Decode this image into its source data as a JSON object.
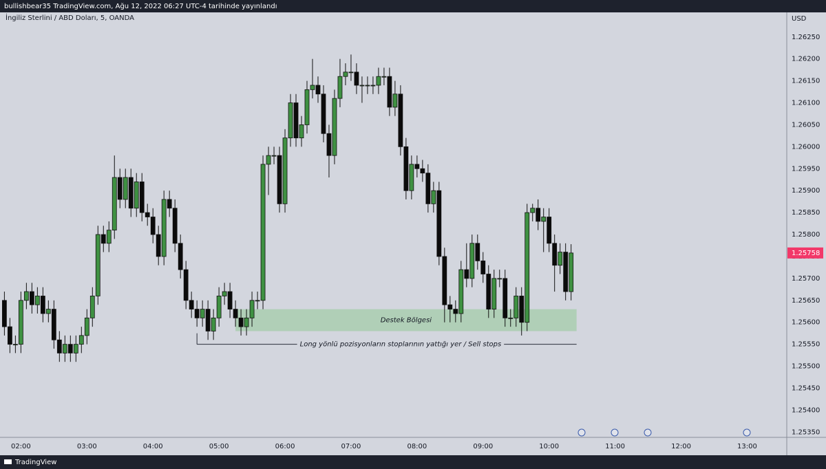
{
  "header": {
    "title": "bullishbear35 TradingView.com, Ağu 12, 2022 06:27 UTC-4 tarihinde yayınlandı",
    "footer": "TradingView"
  },
  "chart_data": {
    "type": "candlestick",
    "symbol": "İngiliz Sterlini / ABD Doları, 5, OANDA",
    "currency": "USD",
    "up_color": "#3f9142",
    "down_color": "#0b0b0b",
    "grid": false,
    "x": [
      "01:45",
      "01:50",
      "01:55",
      "02:00",
      "02:05",
      "02:10",
      "02:15",
      "02:20",
      "02:25",
      "02:30",
      "02:35",
      "02:40",
      "02:45",
      "02:50",
      "02:55",
      "03:00",
      "03:05",
      "03:10",
      "03:15",
      "03:20",
      "03:25",
      "03:30",
      "03:35",
      "03:40",
      "03:45",
      "03:50",
      "03:55",
      "04:00",
      "04:05",
      "04:10",
      "04:15",
      "04:20",
      "04:25",
      "04:30",
      "04:35",
      "04:40",
      "04:45",
      "04:50",
      "04:55",
      "05:00",
      "05:05",
      "05:10",
      "05:15",
      "05:20",
      "05:25",
      "05:30",
      "05:35",
      "05:40",
      "05:45",
      "05:50",
      "05:55",
      "06:00",
      "06:05",
      "06:10",
      "06:15",
      "06:20",
      "06:25",
      "06:30",
      "06:35",
      "06:40",
      "06:45",
      "06:50",
      "06:55",
      "07:00",
      "07:05",
      "07:10",
      "07:15",
      "07:20",
      "07:25",
      "07:30",
      "07:35",
      "07:40",
      "07:45",
      "07:50",
      "07:55",
      "08:00",
      "08:05",
      "08:10",
      "08:15",
      "08:20",
      "08:25",
      "08:30",
      "08:35",
      "08:40",
      "08:45",
      "08:50",
      "08:55",
      "09:00",
      "09:05",
      "09:10",
      "09:15",
      "09:20",
      "09:25",
      "09:30",
      "09:35",
      "09:40",
      "09:45",
      "09:50",
      "09:55",
      "10:00",
      "10:05",
      "10:10",
      "10:15",
      "10:20"
    ],
    "open": [
      1.2565,
      1.2559,
      1.2555,
      1.2555,
      1.2565,
      1.2567,
      1.2564,
      1.2566,
      1.2562,
      1.2563,
      1.2556,
      1.2553,
      1.2555,
      1.2553,
      1.2555,
      1.2557,
      1.2561,
      1.2566,
      1.258,
      1.2578,
      1.2581,
      1.2593,
      1.2588,
      1.2593,
      1.2586,
      1.2592,
      1.2585,
      1.2584,
      1.258,
      1.2575,
      1.2588,
      1.2586,
      1.2578,
      1.2572,
      1.2565,
      1.2563,
      1.2561,
      1.2563,
      1.2558,
      1.2561,
      1.2566,
      1.2567,
      1.2563,
      1.2561,
      1.2559,
      1.2561,
      1.2565,
      1.2565,
      1.2596,
      1.2598,
      1.2598,
      1.2587,
      1.2602,
      1.261,
      1.2602,
      1.2605,
      1.2613,
      1.2614,
      1.2612,
      1.2603,
      1.2598,
      1.2611,
      1.2616,
      1.2617,
      1.2617,
      1.2614,
      1.2614,
      1.2614,
      1.2614,
      1.2616,
      1.2616,
      1.2609,
      1.2612,
      1.26,
      1.259,
      1.2596,
      1.2595,
      1.2594,
      1.2587,
      1.259,
      1.2575,
      1.2564,
      1.2563,
      1.2562,
      1.2572,
      1.257,
      1.2578,
      1.2574,
      1.2571,
      1.2563,
      1.257,
      1.257,
      1.2561,
      1.2561,
      1.2566,
      1.256,
      1.2585,
      1.2586,
      1.2583,
      1.2584,
      1.2578,
      1.2573,
      1.2576,
      1.2567
    ],
    "high": [
      1.2567,
      1.2561,
      1.2557,
      1.2567,
      1.2569,
      1.2569,
      1.2568,
      1.2568,
      1.2565,
      1.2565,
      1.2558,
      1.2557,
      1.2557,
      1.2557,
      1.2559,
      1.2563,
      1.2568,
      1.2582,
      1.2582,
      1.2583,
      1.2598,
      1.2595,
      1.2595,
      1.2595,
      1.2594,
      1.2594,
      1.2587,
      1.2586,
      1.2582,
      1.259,
      1.259,
      1.2588,
      1.258,
      1.2574,
      1.2567,
      1.2565,
      1.2565,
      1.2565,
      1.2563,
      1.2568,
      1.2569,
      1.2569,
      1.2565,
      1.2563,
      1.2563,
      1.2567,
      1.2567,
      1.2598,
      1.26,
      1.26,
      1.26,
      1.2604,
      1.2612,
      1.2612,
      1.2607,
      1.2615,
      1.262,
      1.2616,
      1.2614,
      1.2605,
      1.2613,
      1.262,
      1.2619,
      1.2621,
      1.2619,
      1.2616,
      1.2616,
      1.2616,
      1.2618,
      1.2618,
      1.2618,
      1.2615,
      1.2614,
      1.2602,
      1.2598,
      1.2598,
      1.2597,
      1.2596,
      1.2592,
      1.2592,
      1.2577,
      1.2566,
      1.2565,
      1.2574,
      1.2578,
      1.258,
      1.258,
      1.2576,
      1.2573,
      1.2572,
      1.2572,
      1.2572,
      1.2563,
      1.2568,
      1.2568,
      1.2587,
      1.2587,
      1.2588,
      1.2586,
      1.2586,
      1.258,
      1.2578,
      1.2578,
      1.25778
    ],
    "low": [
      1.2557,
      1.2553,
      1.2553,
      1.2553,
      1.2563,
      1.2562,
      1.2562,
      1.256,
      1.256,
      1.2554,
      1.2551,
      1.2551,
      1.2551,
      1.2551,
      1.2553,
      1.2555,
      1.2559,
      1.2564,
      1.2576,
      1.2576,
      1.2579,
      1.2586,
      1.2586,
      1.2584,
      1.2584,
      1.2583,
      1.2582,
      1.2578,
      1.2573,
      1.2573,
      1.2584,
      1.2576,
      1.257,
      1.2563,
      1.2561,
      1.2559,
      1.2559,
      1.2556,
      1.2556,
      1.2559,
      1.2564,
      1.2561,
      1.2559,
      1.2557,
      1.2557,
      1.2559,
      1.2563,
      1.2563,
      1.2589,
      1.2596,
      1.2585,
      1.2585,
      1.26,
      1.26,
      1.26,
      1.2603,
      1.2611,
      1.261,
      1.2601,
      1.2593,
      1.2596,
      1.2609,
      1.2614,
      1.2615,
      1.2612,
      1.261,
      1.2612,
      1.2612,
      1.2612,
      1.2614,
      1.2607,
      1.2607,
      1.2598,
      1.2588,
      1.2588,
      1.2593,
      1.2592,
      1.2585,
      1.2585,
      1.2573,
      1.256,
      1.256,
      1.256,
      1.256,
      1.2568,
      1.2568,
      1.2572,
      1.2569,
      1.2561,
      1.2561,
      1.2568,
      1.2559,
      1.2559,
      1.2559,
      1.2557,
      1.2558,
      1.2583,
      1.2581,
      1.2576,
      1.2576,
      1.2567,
      1.2571,
      1.2565,
      1.2565
    ],
    "close": [
      1.2559,
      1.2555,
      1.2555,
      1.2565,
      1.2567,
      1.2564,
      1.2566,
      1.2562,
      1.2563,
      1.2556,
      1.2553,
      1.2555,
      1.2553,
      1.2555,
      1.2557,
      1.2561,
      1.2566,
      1.258,
      1.2578,
      1.2581,
      1.2593,
      1.2588,
      1.2593,
      1.2586,
      1.2592,
      1.2585,
      1.2584,
      1.258,
      1.2575,
      1.2588,
      1.2586,
      1.2578,
      1.2572,
      1.2565,
      1.2563,
      1.2561,
      1.2563,
      1.2558,
      1.2561,
      1.2566,
      1.2567,
      1.2563,
      1.2561,
      1.2559,
      1.2561,
      1.2565,
      1.2565,
      1.2596,
      1.2598,
      1.2598,
      1.2587,
      1.2602,
      1.261,
      1.2602,
      1.2605,
      1.2613,
      1.2614,
      1.2612,
      1.2603,
      1.2598,
      1.2611,
      1.2616,
      1.2617,
      1.2617,
      1.2614,
      1.2614,
      1.2614,
      1.2614,
      1.2616,
      1.2616,
      1.2609,
      1.2612,
      1.26,
      1.259,
      1.2596,
      1.2595,
      1.2594,
      1.2587,
      1.259,
      1.2575,
      1.2564,
      1.2563,
      1.2562,
      1.2572,
      1.257,
      1.2578,
      1.2574,
      1.2571,
      1.2563,
      1.257,
      1.257,
      1.2561,
      1.2561,
      1.2566,
      1.256,
      1.2585,
      1.2586,
      1.2583,
      1.2584,
      1.2578,
      1.2573,
      1.2576,
      1.2567,
      1.25758
    ],
    "last_price_color": "#f23869",
    "xlim": [
      "01:41",
      "13:36"
    ],
    "xticks": [
      "02:00",
      "03:00",
      "04:00",
      "05:00",
      "06:00",
      "07:00",
      "08:00",
      "09:00",
      "10:00",
      "11:00",
      "12:00",
      "13:00"
    ],
    "ylim": [
      1.25338,
      1.26306
    ],
    "yticks": [
      {
        "value": 1.2535,
        "label": "1.25350"
      },
      {
        "value": 1.254,
        "label": "1.25400"
      },
      {
        "value": 1.2545,
        "label": "1.25450"
      },
      {
        "value": 1.255,
        "label": "1.25500"
      },
      {
        "value": 1.2555,
        "label": "1.25550"
      },
      {
        "value": 1.256,
        "label": "1.25600"
      },
      {
        "value": 1.2565,
        "label": "1.25650"
      },
      {
        "value": 1.257,
        "label": "1.25700"
      },
      {
        "value": 1.2575,
        "label": "1.25750"
      },
      {
        "value": 1.258,
        "label": "1.25800"
      },
      {
        "value": 1.2585,
        "label": "1.25850"
      },
      {
        "value": 1.259,
        "label": "1.25900"
      },
      {
        "value": 1.2595,
        "label": "1.25950"
      },
      {
        "value": 1.26,
        "label": "1.26000"
      },
      {
        "value": 1.2605,
        "label": "1.26050"
      },
      {
        "value": 1.261,
        "label": "1.26100"
      },
      {
        "value": 1.2615,
        "label": "1.26150"
      },
      {
        "value": 1.262,
        "label": "1.26200"
      },
      {
        "value": 1.2625,
        "label": "1.26250"
      }
    ],
    "zone": {
      "label": "Destek Bölgesi",
      "from": "05:15",
      "to": "10:25",
      "top": 1.2563,
      "bottom": 1.2558,
      "color": "#a9ceb0"
    },
    "stop_line": {
      "label": "Long yönlü pozisyonların stoplarının yattığı yer /  Sell stops",
      "from": "04:40",
      "to": "10:25",
      "level": 1.2555
    }
  }
}
